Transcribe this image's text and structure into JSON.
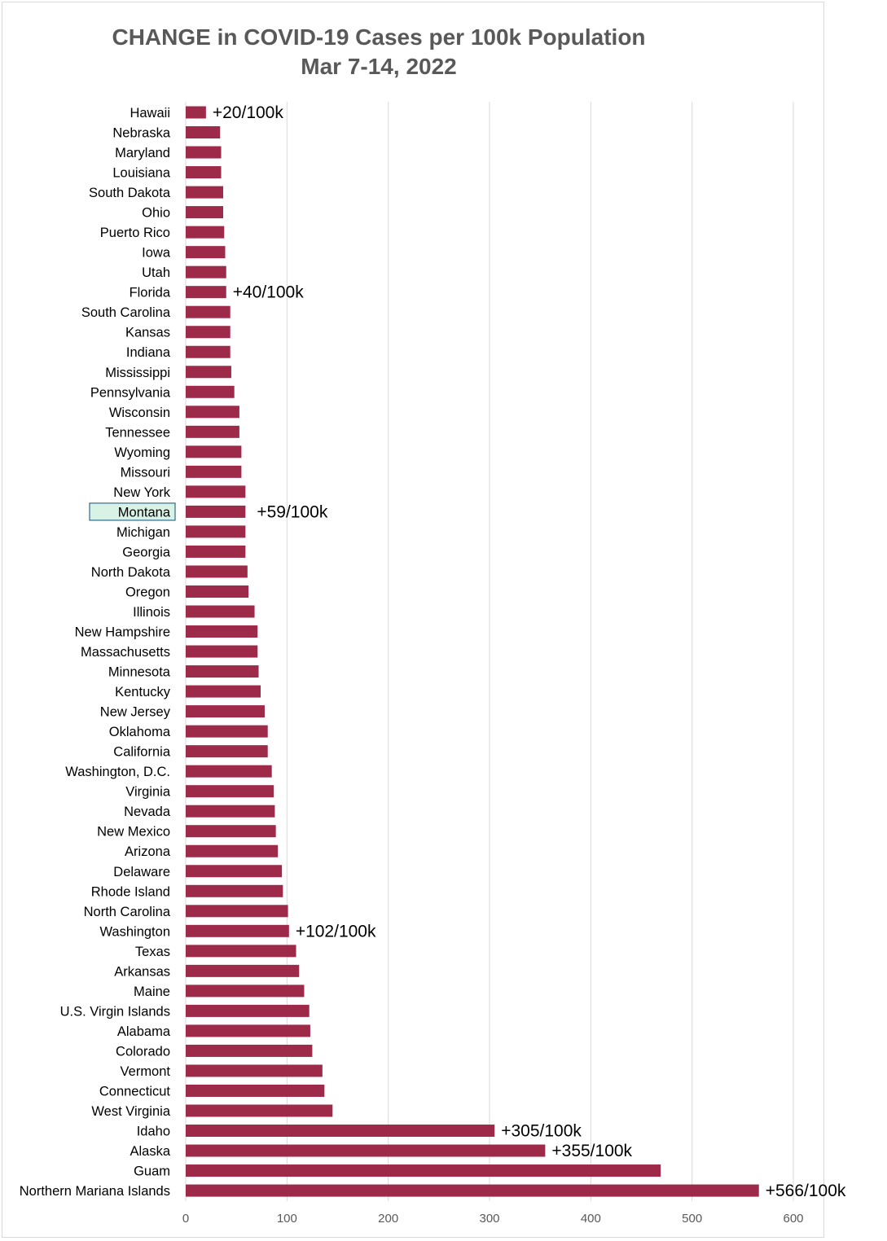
{
  "chart_data": {
    "type": "bar",
    "orientation": "horizontal",
    "title": "CHANGE in COVID-19 Cases per 100k Population",
    "subtitle": "Mar 7-14, 2022",
    "xlim": [
      0,
      600
    ],
    "xticks": [
      "0",
      "100",
      "200",
      "300",
      "400",
      "500",
      "600"
    ],
    "grid": true,
    "bar_color": "#9e2a4a",
    "highlight_color": "#d9f2e6",
    "highlight_border": "#2e6b8a",
    "highlight_category": "Montana",
    "categories": [
      "Hawaii",
      "Nebraska",
      "Maryland",
      "Louisiana",
      "South Dakota",
      "Ohio",
      "Puerto Rico",
      "Iowa",
      "Utah",
      "Florida",
      "South Carolina",
      "Kansas",
      "Indiana",
      "Mississippi",
      "Pennsylvania",
      "Wisconsin",
      "Tennessee",
      "Wyoming",
      "Missouri",
      "New York",
      "Montana",
      "Michigan",
      "Georgia",
      "North Dakota",
      "Oregon",
      "Illinois",
      "New Hampshire",
      "Massachusetts",
      "Minnesota",
      "Kentucky",
      "New Jersey",
      "Oklahoma",
      "California",
      "Washington, D.C.",
      "Virginia",
      "Nevada",
      "New Mexico",
      "Arizona",
      "Delaware",
      "Rhode Island",
      "North Carolina",
      "Washington",
      "Texas",
      "Arkansas",
      "Maine",
      "U.S. Virgin Islands",
      "Alabama",
      "Colorado",
      "Vermont",
      "Connecticut",
      "West Virginia",
      "Idaho",
      "Alaska",
      "Guam",
      "Northern Mariana Islands"
    ],
    "values": [
      20,
      34,
      35,
      35,
      37,
      37,
      38,
      39,
      40,
      40,
      44,
      44,
      44,
      45,
      48,
      53,
      53,
      55,
      55,
      59,
      59,
      59,
      59,
      61,
      62,
      68,
      71,
      71,
      72,
      74,
      78,
      81,
      81,
      85,
      87,
      88,
      89,
      91,
      95,
      96,
      101,
      102,
      109,
      112,
      117,
      122,
      123,
      125,
      135,
      137,
      145,
      305,
      355,
      469,
      566
    ],
    "annotations": [
      {
        "category": "Hawaii",
        "text": "+20/100k"
      },
      {
        "category": "Florida",
        "text": "+40/100k"
      },
      {
        "category": "Montana",
        "text": "+59/100k"
      },
      {
        "category": "Washington",
        "text": "+102/100k"
      },
      {
        "category": "Idaho",
        "text": "+305/100k"
      },
      {
        "category": "Alaska",
        "text": "+355/100k"
      },
      {
        "category": "Northern Mariana Islands",
        "text": "+566/100k"
      }
    ]
  }
}
